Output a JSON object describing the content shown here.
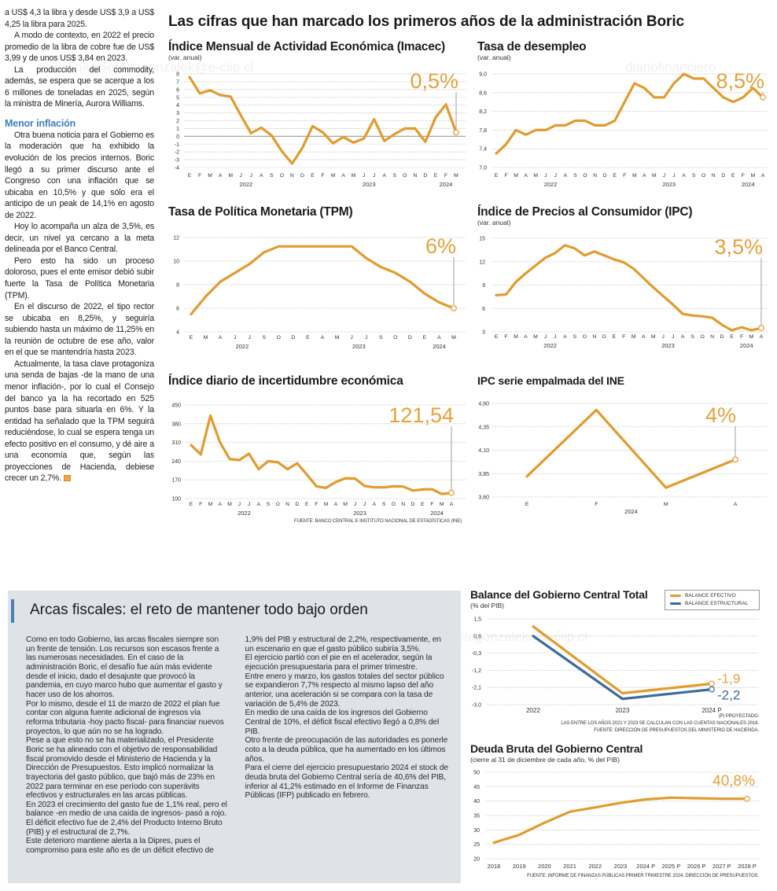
{
  "header": {
    "title": "Las cifras que han marcado los primeros años de la administración Boric"
  },
  "watermarks": [
    "diariofinanciero#agonzalek@e-clip.cl",
    "diariofinanciero",
    "diariofinanciero#agonzalek@e-clip.cl"
  ],
  "article": {
    "paragraphs": [
      "a US$ 4,3 la libra y desde US$ 3,9 a US$ 4,25 la libra para 2025.",
      "A modo de contexto, en 2022 el precio promedio de la libra de cobre fue de US$ 3,99 y de unos US$ 3,84 en 2023.",
      "La producción del commodity, además, se espera que se acerque a los 6 millones de toneladas en 2025, según la ministra de Minería, Aurora Williams.",
      "Otra buena noticia para el Gobierno es la moderación que ha exhibido la evolución de los precios internos. Boric llegó a su primer discurso ante el Congreso con una inflación que se ubicaba en 10,5% y que sólo era el anticipo de un peak de 14,1% en agosto de 2022.",
      "Hoy lo acompaña un alza de 3,5%, es decir, un nivel ya cercano a la meta delineada por el Banco Central.",
      "Pero esto ha sido un proceso doloroso, pues el ente emisor debió subir fuerte la Tasa de Política Monetaria (TPM).",
      "En el discurso de 2022, el tipo rector se ubicaba en 8,25%, y seguiría subiendo hasta un máximo de 11,25% en la reunión de octubre de ese año, valor en el que se mantendría hasta 2023.",
      "Actualmente, la tasa clave protagoniza una senda de bajas -de la mano de una menor inflación-, por lo cual el Consejo del banco ya la ha recortado en 525 puntos base para situarla en 6%. Y la entidad ha señalado que la TPM seguirá reduciéndose, lo cual se espera tenga un efecto positivo en el consumo, y dé aire a una economía que, según las proyecciones de Hacienda, debiese crecer un 2,7%."
    ],
    "subheading": "Menor inflación"
  },
  "fiscal": {
    "title": "Arcas fiscales: el reto de mantener todo bajo orden",
    "paragraphs": [
      "Como en todo Gobierno, las arcas fiscales siempre son un frente de tensión. Los recursos son escasos frente a las numerosas necesidades. En el caso de la administración Boric, el desafío fue aún más evidente desde el inicio, dado el desajuste que provocó la pandemia, en cuyo marco hubo que aumentar el gasto y hacer uso de los ahorros.",
      "Por lo mismo, desde el 11 de marzo de 2022 el plan fue contar con alguna fuente adicional de ingresos vía reforma tributaria -hoy pacto fiscal- para financiar nuevos proyectos, lo que aún no se ha logrado.",
      "Pese a que esto no se ha materializado, el Presidente Boric se ha alineado con el objetivo de responsabilidad fiscal promovido desde el Ministerio de Hacienda y la Dirección de Presupuestos. Esto implicó normalizar la trayectoria del gasto público, que bajó más de 23% en 2022 para terminar en ese período con superávits efectivos y estructurales en las arcas públicas.",
      "En 2023 el crecimiento del gasto fue de 1,1% real, pero el balance -en medio de una caída de ingresos- pasó a rojo. El déficit efectivo fue de 2,4% del Producto Interno Bruto (PIB) y el estructural de 2,7%.",
      "Este deterioro mantiene alerta a la Dipres, pues el compromiso para este año es de un déficit efectivo de 1,9% del PIB y estructural de 2,2%, respectivamente, en un escenario en que el gasto público subiría 3,5%.",
      "El ejercicio partió con el pie en el acelerador, según la ejecución presupuestaria para el primer trimestre.",
      "Entre enero y marzo, los gastos totales del sector público se expandieron 7,7% respecto al mismo lapso del año anterior, una aceleración si se compara con la tasa de variación de 5,4% de 2023.",
      "En medio de una caída de los ingresos del Gobierno Central de 10%, el déficit fiscal efectivo llegó a 0,8% del PIB.",
      "Otro frente de preocupación de las autoridades es ponerle coto a la deuda pública, que ha aumentado en los últimos años.",
      "Para el cierre del ejercicio presupuestario 2024 el stock de deuda bruta del Gobierno Central sería de 40,6% del PIB, inferior al 41,2% estimado en el Informe de Finanzas Públicas (IFP) publicado en febrero."
    ]
  },
  "colors": {
    "line": "#e39b2e",
    "structural": "#3b6b9c",
    "annotation": "#e6a13a",
    "box_bg": "#dfe3e8",
    "accent_bar": "#4a7fb5",
    "subheading": "#3d7fbf"
  },
  "chart_data": [
    {
      "id": "imacec",
      "type": "line",
      "title": "Índice Mensual de Actividad Económica (Imacec)",
      "subtitle": "(var. anual)",
      "ylim": [
        -4,
        8
      ],
      "yticks": [
        "8",
        "7",
        "6",
        "5",
        "4",
        "3",
        "2",
        "1",
        "0",
        "-1",
        "-2",
        "-3",
        "-4"
      ],
      "zero_line": true,
      "grid": true,
      "xlabels": [
        "E",
        "F",
        "M",
        "A",
        "M",
        "J",
        "J",
        "A",
        "S",
        "O",
        "N",
        "D",
        "E",
        "F",
        "M",
        "A",
        "M",
        "J",
        "J",
        "A",
        "S",
        "O",
        "N",
        "D",
        "E",
        "F",
        "M"
      ],
      "years": [
        "2022",
        "2023",
        "2024"
      ],
      "series": [
        {
          "values": [
            7.6,
            5.5,
            5.9,
            5.3,
            5.1,
            2.7,
            0.4,
            1.1,
            0.1,
            -1.9,
            -3.5,
            -1.5,
            1.3,
            0.5,
            -0.9,
            -0.1,
            -0.8,
            -0.3,
            2.2,
            -0.6,
            0.3,
            1.0,
            1.0,
            -0.7,
            2.4,
            4.1,
            0.5
          ],
          "color": "#e39b2e"
        }
      ],
      "annotation": "0,5%"
    },
    {
      "id": "desempleo",
      "type": "line",
      "title": "Tasa de desempleo",
      "subtitle": "(var. anual)",
      "ylim": [
        7.0,
        9.0
      ],
      "yticks": [
        "9,0",
        "8,6",
        "8,2",
        "7,8",
        "7,4",
        "7,0"
      ],
      "grid": true,
      "xlabels": [
        "E",
        "F",
        "M",
        "A",
        "M",
        "J",
        "J",
        "A",
        "S",
        "O",
        "N",
        "D",
        "E",
        "F",
        "M",
        "A",
        "M",
        "J",
        "J",
        "A",
        "S",
        "O",
        "N",
        "D",
        "E",
        "F",
        "M",
        "A"
      ],
      "years": [
        "2022",
        "2023",
        "2024"
      ],
      "series": [
        {
          "values": [
            7.3,
            7.5,
            7.8,
            7.7,
            7.8,
            7.8,
            7.9,
            7.9,
            8.0,
            8.0,
            7.9,
            7.9,
            8.0,
            8.4,
            8.8,
            8.7,
            8.5,
            8.5,
            8.8,
            9.0,
            8.9,
            8.9,
            8.7,
            8.5,
            8.4,
            8.5,
            8.7,
            8.5
          ],
          "color": "#e39b2e"
        }
      ],
      "annotation": "8,5%"
    },
    {
      "id": "tpm",
      "type": "line",
      "title": "Tasa de Política Monetaria (TPM)",
      "ylim": [
        4,
        12
      ],
      "yticks": [
        "12",
        "10",
        "8",
        "6",
        "4"
      ],
      "grid": true,
      "xlabels": [
        "E",
        "M",
        "A",
        "J",
        "J",
        "S",
        "O",
        "D",
        "E",
        "A",
        "M",
        "J",
        "J",
        "S",
        "O",
        "D",
        "E",
        "A",
        "M"
      ],
      "years": [
        "2022",
        "2023",
        "2024"
      ],
      "series": [
        {
          "values": [
            5.5,
            7.0,
            8.25,
            9.0,
            9.75,
            10.75,
            11.25,
            11.25,
            11.25,
            11.25,
            11.25,
            11.25,
            10.25,
            9.5,
            9.0,
            8.25,
            7.25,
            6.5,
            6.0
          ],
          "color": "#e39b2e"
        }
      ],
      "annotation": "6%"
    },
    {
      "id": "ipc",
      "type": "line",
      "title": "Índice de Precios al Consumidor (IPC)",
      "subtitle": "(var. anual)",
      "ylim": [
        3,
        15
      ],
      "yticks": [
        "15",
        "12",
        "9",
        "6",
        "3"
      ],
      "grid": true,
      "xlabels": [
        "E",
        "F",
        "M",
        "A",
        "M",
        "J",
        "J",
        "A",
        "S",
        "O",
        "N",
        "D",
        "E",
        "F",
        "M",
        "A",
        "M",
        "J",
        "J",
        "A",
        "S",
        "O",
        "N",
        "D",
        "E",
        "F",
        "M",
        "A"
      ],
      "years": [
        "2022",
        "2023",
        "2024"
      ],
      "series": [
        {
          "values": [
            7.7,
            7.8,
            9.4,
            10.5,
            11.5,
            12.5,
            13.1,
            14.1,
            13.7,
            12.8,
            13.3,
            12.8,
            12.3,
            11.9,
            11.1,
            9.9,
            8.7,
            7.6,
            6.5,
            5.3,
            5.1,
            5.0,
            4.8,
            3.9,
            3.2,
            3.6,
            3.2,
            3.5
          ],
          "color": "#e39b2e"
        }
      ],
      "annotation": "3,5%"
    },
    {
      "id": "incertidumbre",
      "type": "line",
      "title": "Índice diario de incertidumbre económica",
      "ylim": [
        100,
        450
      ],
      "yticks": [
        "450",
        "380",
        "310",
        "240",
        "170",
        "100"
      ],
      "grid": true,
      "xlabels": [
        "E",
        "F",
        "M",
        "A",
        "M",
        "J",
        "J",
        "A",
        "S",
        "O",
        "N",
        "D",
        "E",
        "F",
        "M",
        "A",
        "M",
        "J",
        "J",
        "A",
        "S",
        "O",
        "N",
        "D",
        "E",
        "F",
        "M",
        "A"
      ],
      "years": [
        "2022",
        "2023",
        "2024"
      ],
      "series": [
        {
          "values": [
            300,
            265,
            410,
            310,
            248,
            244,
            268,
            210,
            240,
            236,
            210,
            232,
            190,
            146,
            140,
            162,
            176,
            175,
            147,
            142,
            142,
            146,
            145,
            130,
            134,
            135,
            117,
            121.54
          ],
          "color": "#e39b2e"
        }
      ],
      "annotation": "121,54",
      "source": "FUENTE: BANCO CENTRAL E INSTITUTO NACIONAL DE ESTADÍSTICAS (INE)"
    },
    {
      "id": "ipc-empalmada",
      "type": "line",
      "title": "IPC serie empalmada del INE",
      "ylim": [
        3.6,
        4.6
      ],
      "yticks": [
        "4,60",
        "4,35",
        "4,10",
        "3,85",
        "3,60"
      ],
      "grid": true,
      "xlabels": [
        "E",
        "F",
        "M",
        "A"
      ],
      "years": [
        "2024"
      ],
      "series": [
        {
          "values": [
            3.82,
            4.53,
            3.7,
            4.0
          ],
          "color": "#e39b2e"
        }
      ],
      "annotation": "4%"
    },
    {
      "id": "balance",
      "type": "line",
      "title": "Balance del Gobierno Central Total",
      "subtitle": "(% del PIB)",
      "ylim": [
        -3.0,
        1.5
      ],
      "yticks": [
        "1,5",
        "0,6",
        "-0,3",
        "-1,2",
        "-2,1",
        "-3,0"
      ],
      "grid": true,
      "xlabels": [
        "2022",
        "2023",
        "2024 P"
      ],
      "legend": "top-right",
      "series": [
        {
          "name": "BALANCE EFECTIVO",
          "values": [
            1.1,
            -2.4,
            -1.9
          ],
          "color": "#e39b2e",
          "end_label": "-1,9"
        },
        {
          "name": "BALANCE ESTRUCTURAL",
          "values": [
            0.6,
            -2.7,
            -2.2
          ],
          "color": "#3b6b9c",
          "end_label": "-2,2"
        }
      ],
      "notes": [
        "(P) PROYECTADO.",
        "LAS ENTRE LOS AÑOS 2021 Y 2023 SE CALCULAN  CON LAS CUENTAS NACIONALES 2018.",
        "FUENTE: DIRECCIÓN DE PRESUPUESTOS DEL MINISTERIO DE HACIENDA."
      ]
    },
    {
      "id": "deuda",
      "type": "line",
      "title": "Deuda Bruta del Gobierno Central",
      "subtitle": "(cierre al 31 de diciembre de cada año, % del PIB)",
      "ylim": [
        20,
        50
      ],
      "yticks": [
        "50",
        "45",
        "40",
        "35",
        "30",
        "25",
        "20"
      ],
      "grid": true,
      "xlabels": [
        "2018",
        "2019",
        "2020",
        "2021",
        "2022",
        "2023",
        "2024 P",
        "2025 P",
        "2026 P",
        "2027 P",
        "2028 P"
      ],
      "series": [
        {
          "values": [
            25.6,
            28.3,
            32.5,
            36.3,
            37.8,
            39.4,
            40.6,
            41.2,
            41.0,
            40.8,
            40.8
          ],
          "color": "#e39b2e"
        }
      ],
      "annotation": "40,8%",
      "source": "FUENTE: INFORME DE FINANZAS PÚBLICAS PRIMER TRIMESTRE 2024, DIRECCIÓN DE PRESUPUESTOS."
    }
  ]
}
